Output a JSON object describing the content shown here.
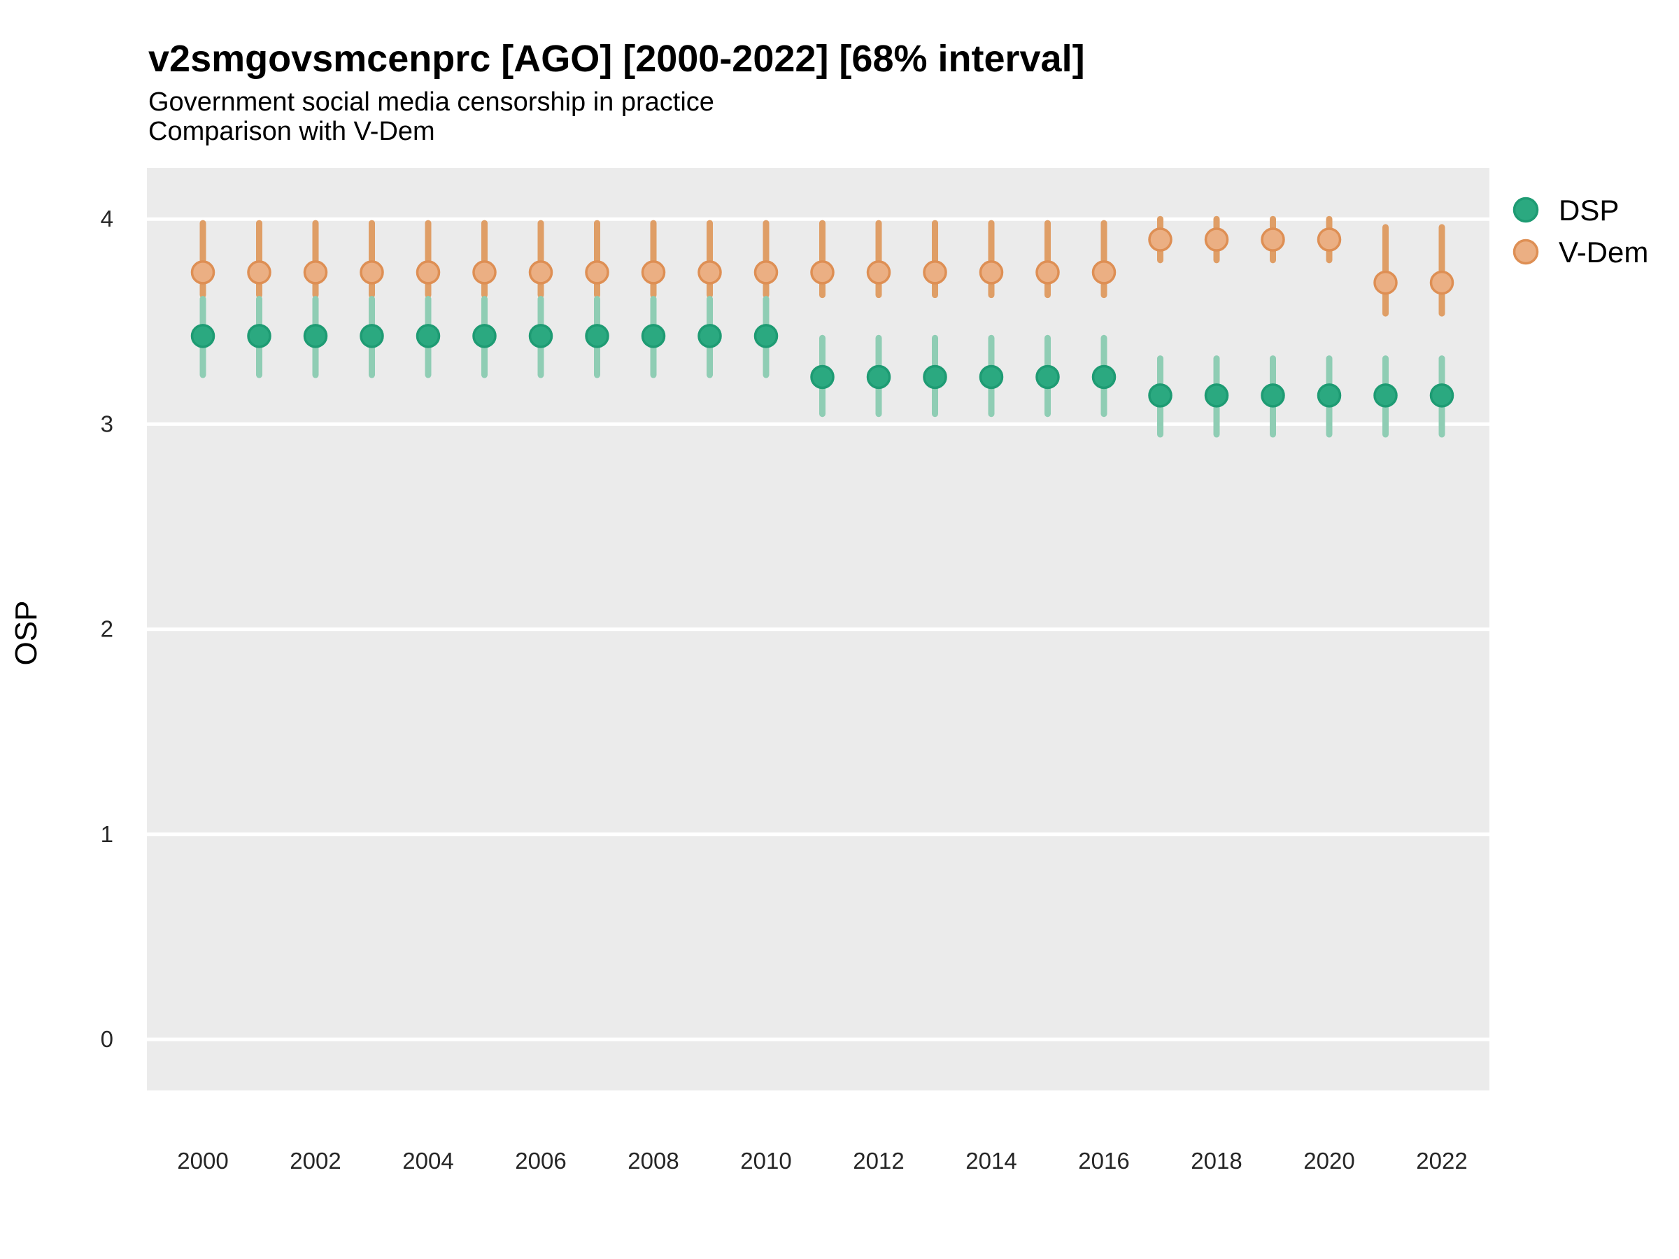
{
  "title": "v2smgovsmcenprc [AGO] [2000-2022] [68% interval]",
  "subtitle1": "Government social media censorship in practice",
  "subtitle2": "Comparison with V-Dem",
  "legend": {
    "position": "right-top",
    "items": [
      {
        "label": "DSP"
      },
      {
        "label": "V-Dem"
      }
    ]
  },
  "chart_data": {
    "type": "scatter",
    "title": "v2smgovsmcenprc [AGO] [2000-2022] [68% interval]",
    "subtitle": "Government social media censorship in practice — Comparison with V-Dem",
    "xlabel": "",
    "ylabel": "OSP",
    "interval": "68%",
    "ylim": [
      -0.25,
      4.25
    ],
    "xlim": [
      1999,
      2023
    ],
    "y_ticks": [
      0,
      1,
      2,
      3,
      4
    ],
    "x_tick_years": [
      2000,
      2002,
      2004,
      2006,
      2008,
      2010,
      2012,
      2014,
      2016,
      2018,
      2020,
      2022
    ],
    "grid": "horizontal major gridlines, white on grey panel",
    "panel_bg": "#EBEBEB",
    "gridline_color": "#FFFFFF",
    "legend_position": "right",
    "x": [
      2000,
      2001,
      2002,
      2003,
      2004,
      2005,
      2006,
      2007,
      2008,
      2009,
      2010,
      2011,
      2012,
      2013,
      2014,
      2015,
      2016,
      2017,
      2018,
      2019,
      2020,
      2021,
      2022
    ],
    "series": [
      {
        "name": "DSP",
        "colors": {
          "bar": "#8FCDB4",
          "fill": "#2BA980",
          "stroke": "#1E9B73"
        },
        "est": [
          3.43,
          3.43,
          3.43,
          3.43,
          3.43,
          3.43,
          3.43,
          3.43,
          3.43,
          3.43,
          3.43,
          3.23,
          3.23,
          3.23,
          3.23,
          3.23,
          3.23,
          3.14,
          3.14,
          3.14,
          3.14,
          3.14,
          3.14
        ],
        "lo": [
          3.24,
          3.24,
          3.24,
          3.24,
          3.24,
          3.24,
          3.24,
          3.24,
          3.24,
          3.24,
          3.24,
          3.05,
          3.05,
          3.05,
          3.05,
          3.05,
          3.05,
          2.95,
          2.95,
          2.95,
          2.95,
          2.95,
          2.95
        ],
        "hi": [
          3.61,
          3.61,
          3.61,
          3.61,
          3.61,
          3.61,
          3.61,
          3.61,
          3.61,
          3.61,
          3.61,
          3.42,
          3.42,
          3.42,
          3.42,
          3.42,
          3.42,
          3.32,
          3.32,
          3.32,
          3.32,
          3.32,
          3.32
        ]
      },
      {
        "name": "V-Dem",
        "colors": {
          "bar": "#DF9E66",
          "fill": "#EBAF83",
          "stroke": "#DE8F54"
        },
        "est": [
          3.74,
          3.74,
          3.74,
          3.74,
          3.74,
          3.74,
          3.74,
          3.74,
          3.74,
          3.74,
          3.74,
          3.74,
          3.74,
          3.74,
          3.74,
          3.74,
          3.74,
          3.9,
          3.9,
          3.9,
          3.9,
          3.69,
          3.69
        ],
        "lo": [
          3.63,
          3.63,
          3.63,
          3.63,
          3.63,
          3.63,
          3.63,
          3.63,
          3.63,
          3.63,
          3.63,
          3.63,
          3.63,
          3.63,
          3.63,
          3.63,
          3.63,
          3.8,
          3.8,
          3.8,
          3.8,
          3.54,
          3.54
        ],
        "hi": [
          3.98,
          3.98,
          3.98,
          3.98,
          3.98,
          3.98,
          3.98,
          3.98,
          3.98,
          3.98,
          3.98,
          3.98,
          3.98,
          3.98,
          3.98,
          3.98,
          3.98,
          4.0,
          4.0,
          4.0,
          4.0,
          3.96,
          3.96
        ]
      }
    ]
  }
}
